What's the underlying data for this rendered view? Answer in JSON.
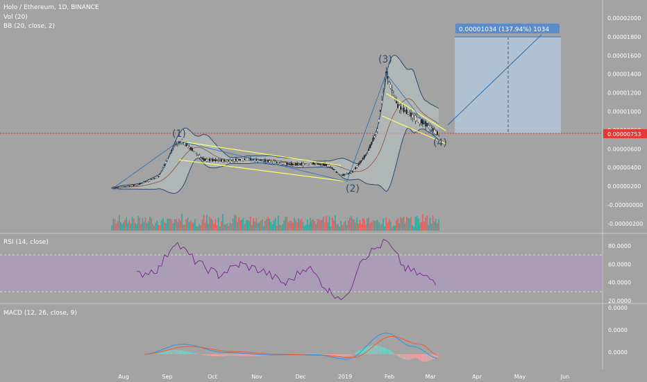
{
  "header": {
    "symbol_line": "Holo / Ethereum, 1D, BINANCE",
    "vol_line": "Vol (20)",
    "bb_line": "BB (20, close, 2)",
    "rsi_line": "RSI (14, close)",
    "macd_line": "MACD (12, 26, close, 9)"
  },
  "annotations": {
    "wave1": "(1)",
    "wave2": "(2)",
    "wave3": "(3)",
    "wave4": "(4)",
    "target_label": "0.00001034 (137.94%) 1034",
    "price_tag": "0.00000753"
  },
  "colors": {
    "background": "#a3a3a3",
    "up": "#26a69a",
    "down": "#ef5350",
    "bb_fill": "#b9c3c3",
    "trendline": "#ffff66",
    "rsi_line": "#7b2f8c",
    "rsi_band": "#b499c6",
    "macd_line": "#2196f3",
    "signal_line": "#ff5722",
    "target_box": "#b3c7dc",
    "target_label_bg": "#5b8bc8",
    "price_line": "#e53935"
  },
  "chart_data": [
    {
      "type": "candlestick",
      "title": "Holo / Ethereum, 1D, BINANCE",
      "x_ticks": [
        "Aug",
        "Sep",
        "Oct",
        "Nov",
        "Dec",
        "2019",
        "Feb",
        "Mar",
        "Apr",
        "May",
        "Jun"
      ],
      "y_ticks": [
        "0.00002000",
        "0.00001800",
        "0.00001600",
        "0.00001400",
        "0.00001200",
        "0.00001000",
        "0.00000800",
        "0.00000600",
        "0.00000400",
        "0.00000200",
        "-0.00000000",
        "-0.00000200"
      ],
      "last_price": 7.53e-06,
      "close_series": [
        {
          "x": "2018-07-24",
          "y": 1.8e-06
        },
        {
          "x": "2018-08-10",
          "y": 2.1e-06
        },
        {
          "x": "2018-08-25",
          "y": 3e-06
        },
        {
          "x": "2018-09-05",
          "y": 6.4e-06
        },
        {
          "x": "2018-09-10",
          "y": 6.8e-06
        },
        {
          "x": "2018-09-25",
          "y": 4.8e-06
        },
        {
          "x": "2018-10-10",
          "y": 4.7e-06
        },
        {
          "x": "2018-10-25",
          "y": 4.9e-06
        },
        {
          "x": "2018-11-10",
          "y": 4.6e-06
        },
        {
          "x": "2018-11-25",
          "y": 4.3e-06
        },
        {
          "x": "2018-12-10",
          "y": 4.4e-06
        },
        {
          "x": "2018-12-20",
          "y": 4.2e-06
        },
        {
          "x": "2018-12-28",
          "y": 3.1e-06
        },
        {
          "x": "2019-01-05",
          "y": 3.5e-06
        },
        {
          "x": "2019-01-15",
          "y": 5.5e-06
        },
        {
          "x": "2019-01-22",
          "y": 8e-06
        },
        {
          "x": "2019-01-28",
          "y": 1.4e-05
        },
        {
          "x": "2019-02-05",
          "y": 1.05e-05
        },
        {
          "x": "2019-02-15",
          "y": 9.5e-06
        },
        {
          "x": "2019-02-25",
          "y": 8.5e-06
        },
        {
          "x": "2019-03-05",
          "y": 7.5e-06
        }
      ],
      "wave_labels": [
        {
          "label": "(1)",
          "x": "2018-09-10",
          "y": 7.5e-06
        },
        {
          "label": "(2)",
          "x": "2018-12-28",
          "y": 1.9e-06
        },
        {
          "label": "(3)",
          "x": "2019-01-28",
          "y": 1.51e-05
        },
        {
          "label": "(4)",
          "x": "2019-03-02",
          "y": 6.3e-06
        }
      ],
      "target": {
        "change": 1.034e-05,
        "percent": 137.94,
        "ticks": 1034
      }
    },
    {
      "type": "line",
      "title": "RSI (14, close)",
      "y_ticks": [
        "80.0000",
        "60.0000",
        "40.0000",
        "20.0000"
      ],
      "band": [
        30,
        70
      ],
      "series": [
        {
          "x": "2018-08-10",
          "y": 48
        },
        {
          "x": "2018-08-25",
          "y": 55
        },
        {
          "x": "2018-09-05",
          "y": 85
        },
        {
          "x": "2018-09-20",
          "y": 62
        },
        {
          "x": "2018-10-05",
          "y": 48
        },
        {
          "x": "2018-10-20",
          "y": 60
        },
        {
          "x": "2018-11-05",
          "y": 52
        },
        {
          "x": "2018-11-20",
          "y": 38
        },
        {
          "x": "2018-12-05",
          "y": 58
        },
        {
          "x": "2018-12-20",
          "y": 30
        },
        {
          "x": "2019-01-01",
          "y": 22
        },
        {
          "x": "2019-01-10",
          "y": 65
        },
        {
          "x": "2019-01-28",
          "y": 85
        },
        {
          "x": "2019-02-10",
          "y": 55
        },
        {
          "x": "2019-02-25",
          "y": 45
        },
        {
          "x": "2019-03-05",
          "y": 40
        }
      ]
    },
    {
      "type": "line",
      "title": "MACD (12, 26, close, 9)",
      "y_ticks": [
        "0.0000",
        "0.0000",
        "0.0000"
      ],
      "series": [
        {
          "name": "MACD",
          "points": [
            {
              "x": "2018-08-15",
              "y": 0.0
            },
            {
              "x": "2018-09-10",
              "y": 0.45
            },
            {
              "x": "2018-10-10",
              "y": 0.08
            },
            {
              "x": "2018-11-10",
              "y": -0.03
            },
            {
              "x": "2018-12-10",
              "y": -0.02
            },
            {
              "x": "2019-01-01",
              "y": -0.22
            },
            {
              "x": "2019-01-28",
              "y": 0.95
            },
            {
              "x": "2019-02-15",
              "y": 0.35
            },
            {
              "x": "2019-03-05",
              "y": -0.18
            }
          ]
        },
        {
          "name": "Signal",
          "points": [
            {
              "x": "2018-08-15",
              "y": 0.0
            },
            {
              "x": "2018-09-15",
              "y": 0.35
            },
            {
              "x": "2018-10-15",
              "y": 0.12
            },
            {
              "x": "2018-11-15",
              "y": 0.0
            },
            {
              "x": "2018-12-15",
              "y": -0.05
            },
            {
              "x": "2019-01-05",
              "y": -0.15
            },
            {
              "x": "2019-02-01",
              "y": 0.8
            },
            {
              "x": "2019-02-20",
              "y": 0.45
            },
            {
              "x": "2019-03-05",
              "y": -0.05
            }
          ]
        }
      ]
    }
  ]
}
